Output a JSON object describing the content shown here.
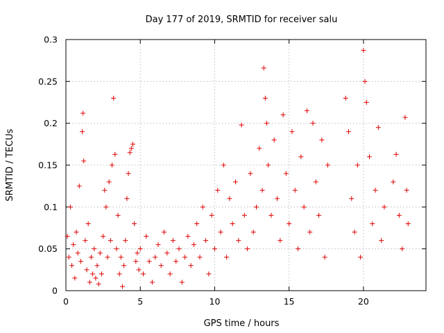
{
  "chart_data": {
    "type": "scatter",
    "title": "Day 177 of 2019, SRMTID for receiver salu",
    "xlabel": "GPS time / hours",
    "ylabel": "SRMTID / TECUs",
    "xlim": [
      0,
      24.2
    ],
    "ylim": [
      0,
      0.3
    ],
    "xticks": [
      0,
      5,
      10,
      15,
      20
    ],
    "yticks": [
      0,
      0.05,
      0.1,
      0.15,
      0.2,
      0.25,
      0.3
    ],
    "xtick_labels": [
      "0",
      "5",
      "10",
      "15",
      "20"
    ],
    "ytick_labels": [
      "0",
      "0.05",
      "0.1",
      "0.15",
      "0.2",
      "0.25",
      "0.3"
    ],
    "grid": true,
    "marker": "+",
    "color": "#e00000",
    "series": [
      {
        "name": "SRMTID",
        "points": [
          [
            0.1,
            0.065
          ],
          [
            0.2,
            0.04
          ],
          [
            0.3,
            0.1
          ],
          [
            0.4,
            0.03
          ],
          [
            0.5,
            0.055
          ],
          [
            0.6,
            0.015
          ],
          [
            0.7,
            0.07
          ],
          [
            0.8,
            0.045
          ],
          [
            0.9,
            0.125
          ],
          [
            1.0,
            0.035
          ],
          [
            1.1,
            0.19
          ],
          [
            1.15,
            0.212
          ],
          [
            1.2,
            0.155
          ],
          [
            1.3,
            0.06
          ],
          [
            1.4,
            0.025
          ],
          [
            1.5,
            0.08
          ],
          [
            1.6,
            0.01
          ],
          [
            1.7,
            0.04
          ],
          [
            1.8,
            0.02
          ],
          [
            1.9,
            0.05
          ],
          [
            2.0,
            0.015
          ],
          [
            2.1,
            0.03
          ],
          [
            2.2,
            0.008
          ],
          [
            2.3,
            0.045
          ],
          [
            2.4,
            0.02
          ],
          [
            2.5,
            0.065
          ],
          [
            2.6,
            0.12
          ],
          [
            2.7,
            0.1
          ],
          [
            2.8,
            0.04
          ],
          [
            2.9,
            0.13
          ],
          [
            3.0,
            0.06
          ],
          [
            3.1,
            0.15
          ],
          [
            3.2,
            0.23
          ],
          [
            3.3,
            0.163
          ],
          [
            3.4,
            0.05
          ],
          [
            3.5,
            0.09
          ],
          [
            3.6,
            0.02
          ],
          [
            3.7,
            0.04
          ],
          [
            3.8,
            0.005
          ],
          [
            3.9,
            0.03
          ],
          [
            4.0,
            0.06
          ],
          [
            4.1,
            0.11
          ],
          [
            4.2,
            0.14
          ],
          [
            4.3,
            0.165
          ],
          [
            4.4,
            0.17
          ],
          [
            4.5,
            0.175
          ],
          [
            4.6,
            0.08
          ],
          [
            4.7,
            0.035
          ],
          [
            4.8,
            0.045
          ],
          [
            4.9,
            0.025
          ],
          [
            5.0,
            0.05
          ],
          [
            5.2,
            0.02
          ],
          [
            5.4,
            0.065
          ],
          [
            5.6,
            0.035
          ],
          [
            5.8,
            0.01
          ],
          [
            6.0,
            0.04
          ],
          [
            6.2,
            0.055
          ],
          [
            6.4,
            0.03
          ],
          [
            6.6,
            0.07
          ],
          [
            6.8,
            0.045
          ],
          [
            7.0,
            0.02
          ],
          [
            7.2,
            0.06
          ],
          [
            7.4,
            0.035
          ],
          [
            7.6,
            0.05
          ],
          [
            7.8,
            0.01
          ],
          [
            8.0,
            0.04
          ],
          [
            8.2,
            0.065
          ],
          [
            8.4,
            0.03
          ],
          [
            8.6,
            0.055
          ],
          [
            8.8,
            0.08
          ],
          [
            9.0,
            0.04
          ],
          [
            9.2,
            0.1
          ],
          [
            9.4,
            0.06
          ],
          [
            9.6,
            0.02
          ],
          [
            9.8,
            0.09
          ],
          [
            10.0,
            0.05
          ],
          [
            10.2,
            0.12
          ],
          [
            10.4,
            0.07
          ],
          [
            10.6,
            0.15
          ],
          [
            10.8,
            0.04
          ],
          [
            11.0,
            0.11
          ],
          [
            11.2,
            0.08
          ],
          [
            11.4,
            0.13
          ],
          [
            11.6,
            0.06
          ],
          [
            11.8,
            0.198
          ],
          [
            12.0,
            0.09
          ],
          [
            12.2,
            0.05
          ],
          [
            12.4,
            0.14
          ],
          [
            12.6,
            0.07
          ],
          [
            12.8,
            0.1
          ],
          [
            13.0,
            0.17
          ],
          [
            13.2,
            0.12
          ],
          [
            13.3,
            0.266
          ],
          [
            13.4,
            0.23
          ],
          [
            13.5,
            0.2
          ],
          [
            13.6,
            0.15
          ],
          [
            13.8,
            0.09
          ],
          [
            14.0,
            0.18
          ],
          [
            14.2,
            0.11
          ],
          [
            14.4,
            0.06
          ],
          [
            14.6,
            0.21
          ],
          [
            14.8,
            0.14
          ],
          [
            15.0,
            0.08
          ],
          [
            15.2,
            0.19
          ],
          [
            15.4,
            0.12
          ],
          [
            15.6,
            0.05
          ],
          [
            15.8,
            0.16
          ],
          [
            16.0,
            0.1
          ],
          [
            16.2,
            0.215
          ],
          [
            16.4,
            0.07
          ],
          [
            16.6,
            0.2
          ],
          [
            16.8,
            0.13
          ],
          [
            17.0,
            0.09
          ],
          [
            17.2,
            0.18
          ],
          [
            17.4,
            0.04
          ],
          [
            17.6,
            0.15
          ],
          [
            18.8,
            0.23
          ],
          [
            19.0,
            0.19
          ],
          [
            19.2,
            0.11
          ],
          [
            19.4,
            0.07
          ],
          [
            19.6,
            0.15
          ],
          [
            19.8,
            0.04
          ],
          [
            20.0,
            0.287
          ],
          [
            20.1,
            0.25
          ],
          [
            20.2,
            0.225
          ],
          [
            20.4,
            0.16
          ],
          [
            20.6,
            0.08
          ],
          [
            20.8,
            0.12
          ],
          [
            21.0,
            0.195
          ],
          [
            21.2,
            0.06
          ],
          [
            21.4,
            0.1
          ],
          [
            22.0,
            0.13
          ],
          [
            22.2,
            0.163
          ],
          [
            22.4,
            0.09
          ],
          [
            22.6,
            0.05
          ],
          [
            22.8,
            0.207
          ],
          [
            22.9,
            0.12
          ],
          [
            23.0,
            0.08
          ]
        ]
      }
    ]
  }
}
